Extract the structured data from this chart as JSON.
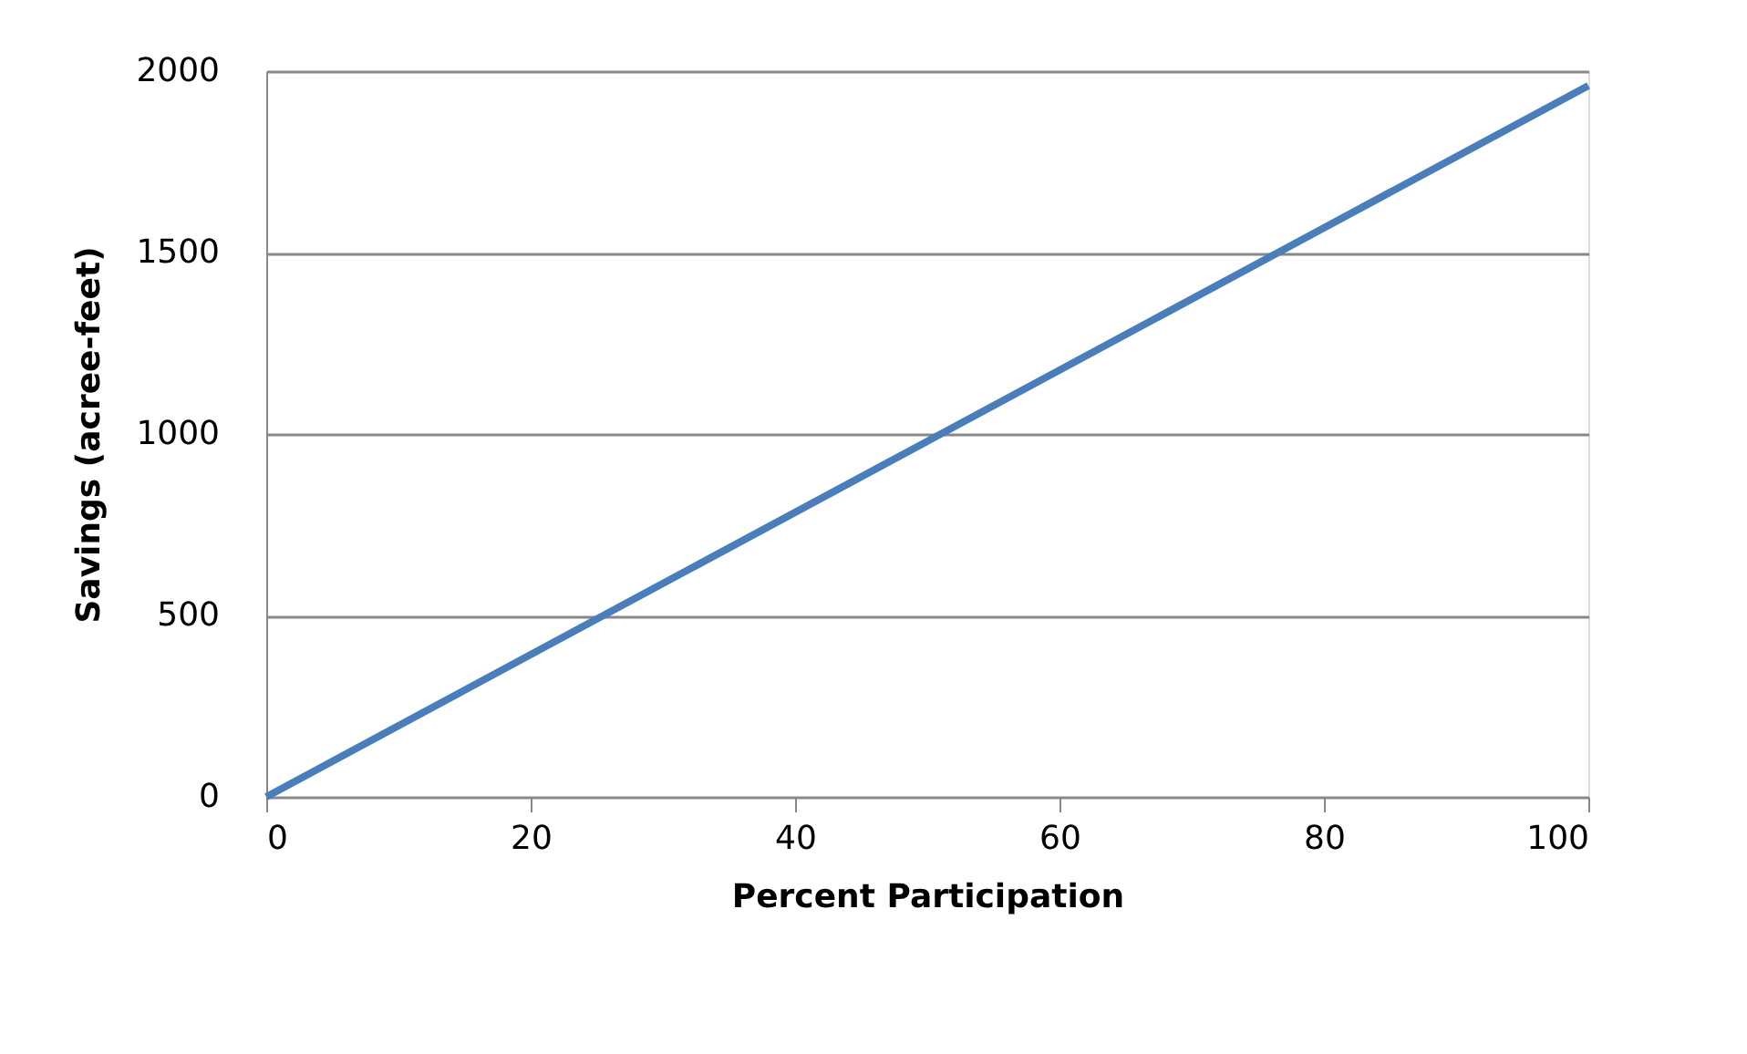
{
  "chart_data": {
    "type": "line",
    "xlabel": "Percent Participation",
    "ylabel": "Savings (acree-feet)",
    "x": [
      0,
      100
    ],
    "series": [
      {
        "color": "#4a7ebb",
        "values": [
          0,
          1960
        ]
      }
    ],
    "xlim": [
      0,
      100
    ],
    "xticks": [
      0,
      20,
      40,
      60,
      80,
      100
    ],
    "ylim": [
      0,
      2000
    ],
    "yticks": [
      0,
      500,
      1000,
      1500,
      2000
    ],
    "grid": "y",
    "legend": false,
    "marker": "none",
    "line_style": "solid"
  }
}
